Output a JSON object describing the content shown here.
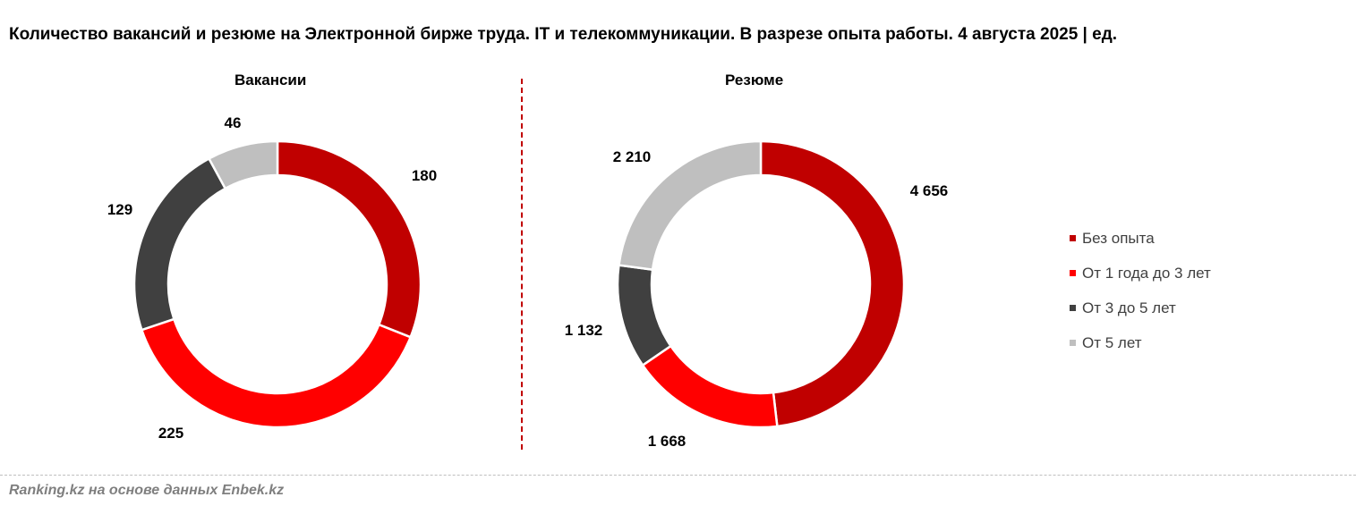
{
  "title": "Количество вакансий и резюме на Электронной бирже труда. IT и телекоммуникации. В разрезе опыта работы. 4 августа 2025 | ед.",
  "source": "Ranking.kz на основе данных Enbek.kz",
  "legend": [
    {
      "label": "Без опыта",
      "color": "#c00000"
    },
    {
      "label": "От 1 года до 3 лет",
      "color": "#ff0000"
    },
    {
      "label": "От 3 до 5 лет",
      "color": "#404040"
    },
    {
      "label": "От 5 лет",
      "color": "#bfbfbf"
    }
  ],
  "chart_data": [
    {
      "type": "pie",
      "title": "Вакансии",
      "categories": [
        "Без опыта",
        "От 1 года до 3 лет",
        "От 3 до 5 лет",
        "От 5 лет"
      ],
      "values": [
        180,
        225,
        129,
        46
      ],
      "labels": [
        "180",
        "225",
        "129",
        "46"
      ],
      "colors": [
        "#c00000",
        "#ff0000",
        "#404040",
        "#bfbfbf"
      ]
    },
    {
      "type": "pie",
      "title": "Резюме",
      "categories": [
        "Без опыта",
        "От 1 года до 3 лет",
        "От 3 до 5 лет",
        "От 5 лет"
      ],
      "values": [
        4656,
        1668,
        1132,
        2210
      ],
      "labels": [
        "4 656",
        "1 668",
        "1 132",
        "2 210"
      ],
      "colors": [
        "#c00000",
        "#ff0000",
        "#404040",
        "#bfbfbf"
      ]
    }
  ]
}
